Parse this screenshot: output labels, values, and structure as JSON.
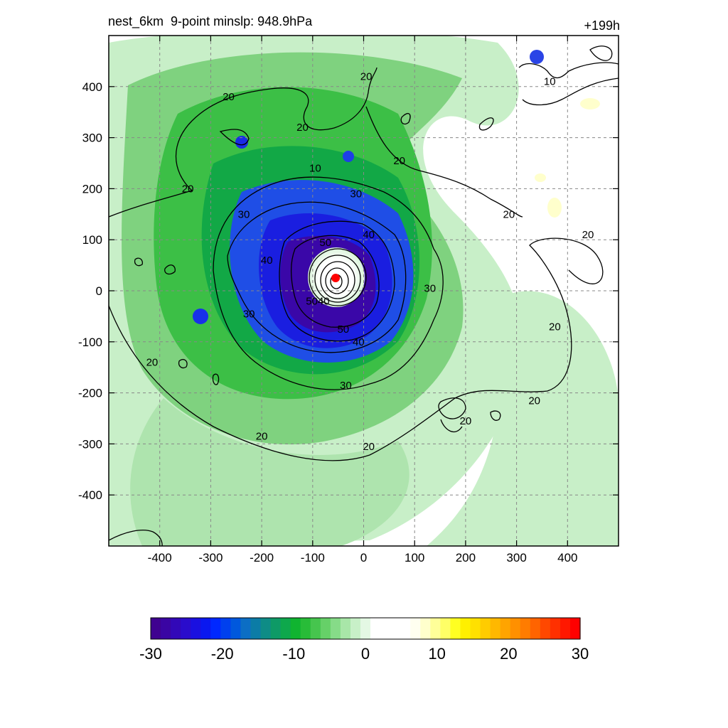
{
  "header": {
    "left_title": "nest_6km  9-point minslp: 948.9hPa",
    "right_title": "+199h"
  },
  "chart_data": {
    "type": "heatmap",
    "title": "nest_6km  9-point minslp: 948.9hPa",
    "subtitle": "+199h",
    "xlabel": "",
    "ylabel": "",
    "xlim": [
      -500,
      500
    ],
    "ylim": [
      -500,
      500
    ],
    "x_ticks": [
      -400,
      -300,
      -200,
      -100,
      0,
      100,
      200,
      300,
      400
    ],
    "y_ticks": [
      -400,
      -300,
      -200,
      -100,
      0,
      100,
      200,
      300,
      400
    ],
    "grid": true,
    "center_marker": {
      "x": -55,
      "y": 25,
      "color": "#ff0000"
    },
    "contour_levels": [
      10,
      20,
      30,
      40,
      50
    ],
    "contour_labels": [
      {
        "text": "20",
        "x": -265,
        "y": 380
      },
      {
        "text": "20",
        "x": -120,
        "y": 320
      },
      {
        "text": "20",
        "x": 5,
        "y": 420
      },
      {
        "text": "20",
        "x": -345,
        "y": 200
      },
      {
        "text": "10",
        "x": -95,
        "y": 240
      },
      {
        "text": "20",
        "x": 70,
        "y": 255
      },
      {
        "text": "10",
        "x": 365,
        "y": 410
      },
      {
        "text": "20",
        "x": 285,
        "y": 150
      },
      {
        "text": "20",
        "x": 440,
        "y": 110
      },
      {
        "text": "30",
        "x": -15,
        "y": 190
      },
      {
        "text": "30",
        "x": -235,
        "y": 150
      },
      {
        "text": "50",
        "x": -75,
        "y": 95
      },
      {
        "text": "40",
        "x": 10,
        "y": 110
      },
      {
        "text": "40",
        "x": -190,
        "y": 60
      },
      {
        "text": "30",
        "x": 130,
        "y": 5
      },
      {
        "text": "30",
        "x": -225,
        "y": -45
      },
      {
        "text": "5040",
        "x": -90,
        "y": -20
      },
      {
        "text": "50",
        "x": -40,
        "y": -75
      },
      {
        "text": "40",
        "x": -10,
        "y": -100
      },
      {
        "text": "20",
        "x": 375,
        "y": -70
      },
      {
        "text": "20",
        "x": -415,
        "y": -140
      },
      {
        "text": "30",
        "x": -35,
        "y": -185
      },
      {
        "text": "20",
        "x": 335,
        "y": -215
      },
      {
        "text": "20",
        "x": -200,
        "y": -285
      },
      {
        "text": "20",
        "x": 200,
        "y": -255
      },
      {
        "text": "20",
        "x": 10,
        "y": -305
      }
    ],
    "colorbar": {
      "min": -30,
      "max": 30,
      "ticks": [
        -30,
        -20,
        -10,
        0,
        10,
        20,
        30
      ],
      "colors": [
        "#3f0290",
        "#3a05a3",
        "#3208b8",
        "#2a0ccc",
        "#1a10e0",
        "#0a18f0",
        "#0028ff",
        "#0040ee",
        "#0058dd",
        "#0c6ec4",
        "#0c7ca6",
        "#0e8c86",
        "#0e9a66",
        "#0ea84c",
        "#10b430",
        "#28bc38",
        "#46c54e",
        "#66d068",
        "#86db88",
        "#a8e6a8",
        "#c8f0c8",
        "#e4f8e4",
        "#ffffff",
        "#ffffff",
        "#ffffff",
        "#ffffff",
        "#fffff0",
        "#ffffcc",
        "#ffff99",
        "#ffff66",
        "#ffff22",
        "#fff000",
        "#ffe000",
        "#ffcc00",
        "#ffb800",
        "#ffa400",
        "#ff9000",
        "#ff7c00",
        "#ff6400",
        "#ff4800",
        "#ff3000",
        "#ff1800",
        "#ff0000"
      ]
    }
  }
}
